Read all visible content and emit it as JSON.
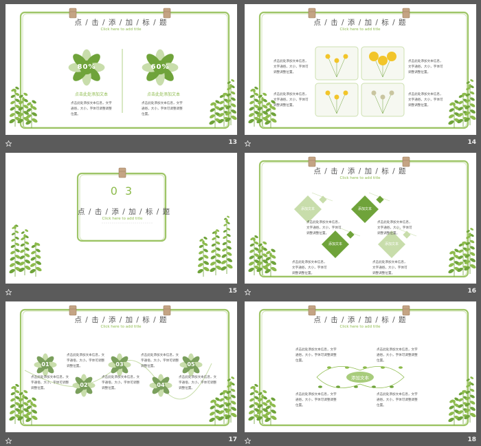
{
  "slides": [
    {
      "number": 13,
      "title": "点 / 击 / 添 / 加 / 标 / 题",
      "subtitle": "Click here to add title",
      "items": [
        {
          "value": "80%",
          "caption": "点击此处添加文本",
          "text": "点击此处添加文本信息，文字通俗，大小，字体可调整调整位置。"
        },
        {
          "value": "60%",
          "caption": "点击此处添加文本",
          "text": "点击此处添加文本信息，文字通俗，大小，字体可调整调整位置。"
        }
      ]
    },
    {
      "number": 14,
      "title": "点 / 击 / 添 / 加 / 标 / 题",
      "subtitle": "Click here to add title",
      "texts": [
        "点击此处添加文本信息，文字通俗，大小，字体可调整调整位置。",
        "点击此处添加文本信息，文字通俗，大小，字体可调整调整位置。",
        "点击此处添加文本信息，文字通俗，大小，字体可调整调整位置。",
        "点击此处添加文本信息，文字通俗，大小，字体可调整调整位置。"
      ]
    },
    {
      "number": 15,
      "section": "0 3",
      "title": "点 / 击 / 添 / 加 / 标 / 题",
      "subtitle": "Click here to add title"
    },
    {
      "number": 16,
      "title": "点 / 击 / 添 / 加 / 标 / 题",
      "subtitle": "Click here to add title",
      "items": [
        {
          "label": "添加文本",
          "text": "点击此处添加文本信息，文字通俗，大小，字体可调整调整位置。"
        },
        {
          "label": "添加文本",
          "text": "点击此处添加文本信息，文字通俗，大小，字体可调整调整位置。"
        },
        {
          "label": "添加文本",
          "text": "点击此处添加文本信息，文字通俗，大小，字体可调整调整位置。"
        },
        {
          "label": "添加文本",
          "text": "点击此处添加文本信息，文字通俗，大小，字体可调整调整位置。"
        }
      ]
    },
    {
      "number": 17,
      "title": "点 / 击 / 添 / 加 / 标 / 题",
      "subtitle": "Click here to add title",
      "items": [
        {
          "label": "01",
          "text": "点击此处添加文本信息，文字通俗，大小，字体可调整调整位置。"
        },
        {
          "label": "02",
          "text": "点击此处添加文本信息，文字通俗，大小，字体可调整调整位置。"
        },
        {
          "label": "03",
          "text": "点击此处添加文本信息，文字通俗，大小，字体可调整调整位置。"
        },
        {
          "label": "04",
          "text": "点击此处添加文本信息，文字通俗，大小，字体可调整调整位置。"
        },
        {
          "label": "05",
          "text": "点击此处添加文本信息，文字通俗，大小，字体可调整调整位置。"
        }
      ]
    },
    {
      "number": 18,
      "title": "点 / 击 / 添 / 加 / 标 / 题",
      "subtitle": "Click here to add title",
      "center": "添加文本",
      "texts": [
        "点击此处添加文本信息，文字通俗，大小，字体可调整调整位置。",
        "点击此处添加文本信息，文字通俗，大小，字体可调整调整位置。",
        "点击此处添加文本信息，文字通俗，大小，字体可调整调整位置。",
        "点击此处添加文本信息，文字通俗，大小，字体可调整调整位置。"
      ]
    }
  ]
}
